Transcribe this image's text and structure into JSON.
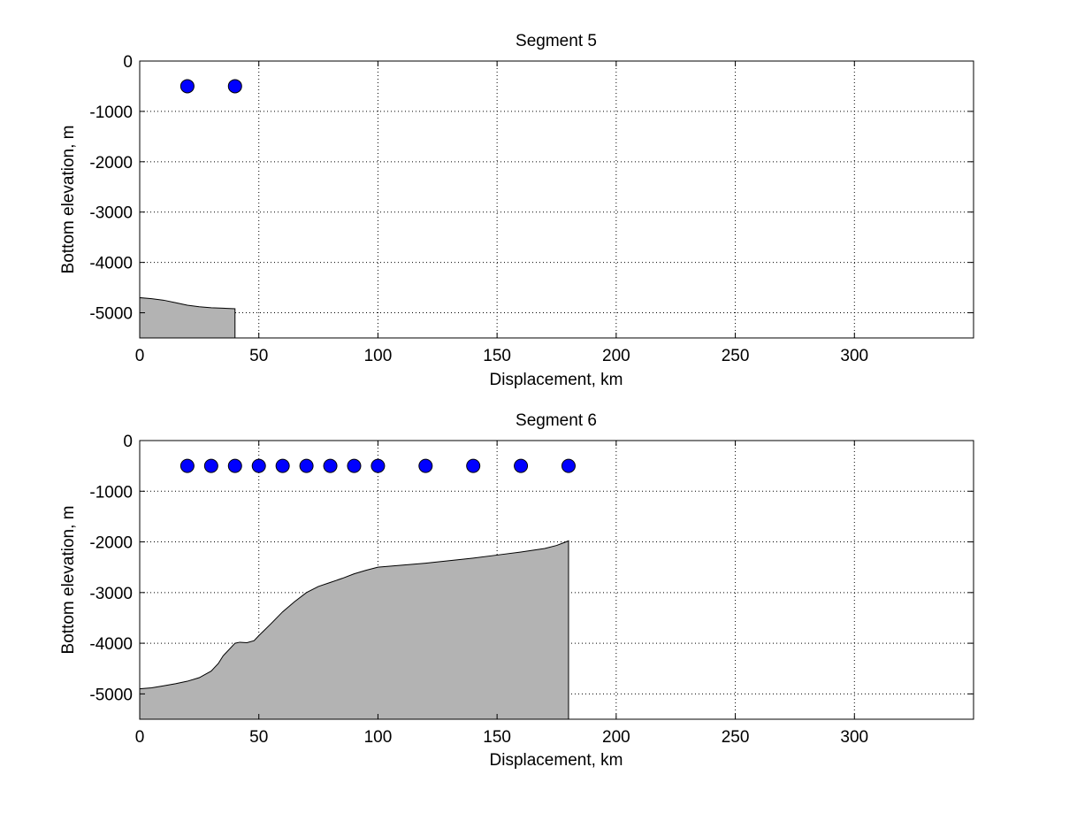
{
  "chart_data": [
    {
      "type": "area",
      "title": "Segment 5",
      "xlabel": "Displacement, km",
      "ylabel": "Bottom elevation, m",
      "xlim": [
        0,
        350
      ],
      "ylim": [
        -5500,
        0
      ],
      "xticks": [
        0,
        50,
        100,
        150,
        200,
        250,
        300
      ],
      "yticks": [
        0,
        -1000,
        -2000,
        -3000,
        -4000,
        -5000
      ],
      "xtick_labels": [
        "0",
        "50",
        "100",
        "150",
        "200",
        "250",
        "300"
      ],
      "ytick_labels": [
        "0",
        "-1000",
        "-2000",
        "-3000",
        "-4000",
        "-5000"
      ],
      "grid": true,
      "grid_style": "dotted",
      "fill_color": "#b3b3b3",
      "marker_color": "#0000ff",
      "bathymetry": {
        "x": [
          0,
          5,
          10,
          15,
          20,
          25,
          30,
          35,
          40
        ],
        "y": [
          -4700,
          -4720,
          -4750,
          -4800,
          -4850,
          -4880,
          -4900,
          -4910,
          -4920
        ]
      },
      "stations": {
        "x": [
          20,
          40
        ],
        "y": [
          -500,
          -500
        ]
      }
    },
    {
      "type": "area",
      "title": "Segment 6",
      "xlabel": "Displacement, km",
      "ylabel": "Bottom elevation, m",
      "xlim": [
        0,
        350
      ],
      "ylim": [
        -5500,
        0
      ],
      "xticks": [
        0,
        50,
        100,
        150,
        200,
        250,
        300
      ],
      "yticks": [
        0,
        -1000,
        -2000,
        -3000,
        -4000,
        -5000
      ],
      "xtick_labels": [
        "0",
        "50",
        "100",
        "150",
        "200",
        "250",
        "300"
      ],
      "ytick_labels": [
        "0",
        "-1000",
        "-2000",
        "-3000",
        "-4000",
        "-5000"
      ],
      "grid": true,
      "grid_style": "dotted",
      "fill_color": "#b3b3b3",
      "marker_color": "#0000ff",
      "bathymetry": {
        "x": [
          0,
          5,
          10,
          15,
          20,
          25,
          30,
          33,
          35,
          38,
          40,
          42,
          45,
          48,
          50,
          55,
          60,
          65,
          70,
          75,
          80,
          85,
          90,
          95,
          100,
          110,
          120,
          130,
          140,
          150,
          160,
          170,
          175,
          180
        ],
        "y": [
          -4900,
          -4880,
          -4840,
          -4800,
          -4750,
          -4680,
          -4550,
          -4400,
          -4250,
          -4100,
          -4000,
          -3980,
          -3990,
          -3950,
          -3850,
          -3620,
          -3380,
          -3180,
          -3000,
          -2880,
          -2800,
          -2720,
          -2630,
          -2560,
          -2500,
          -2460,
          -2420,
          -2370,
          -2320,
          -2260,
          -2200,
          -2130,
          -2070,
          -1980
        ]
      },
      "stations": {
        "x": [
          20,
          30,
          40,
          50,
          60,
          70,
          80,
          90,
          100,
          120,
          140,
          160,
          180
        ],
        "y": [
          -500,
          -500,
          -500,
          -500,
          -500,
          -500,
          -500,
          -500,
          -500,
          -500,
          -500,
          -500,
          -500
        ]
      }
    }
  ]
}
